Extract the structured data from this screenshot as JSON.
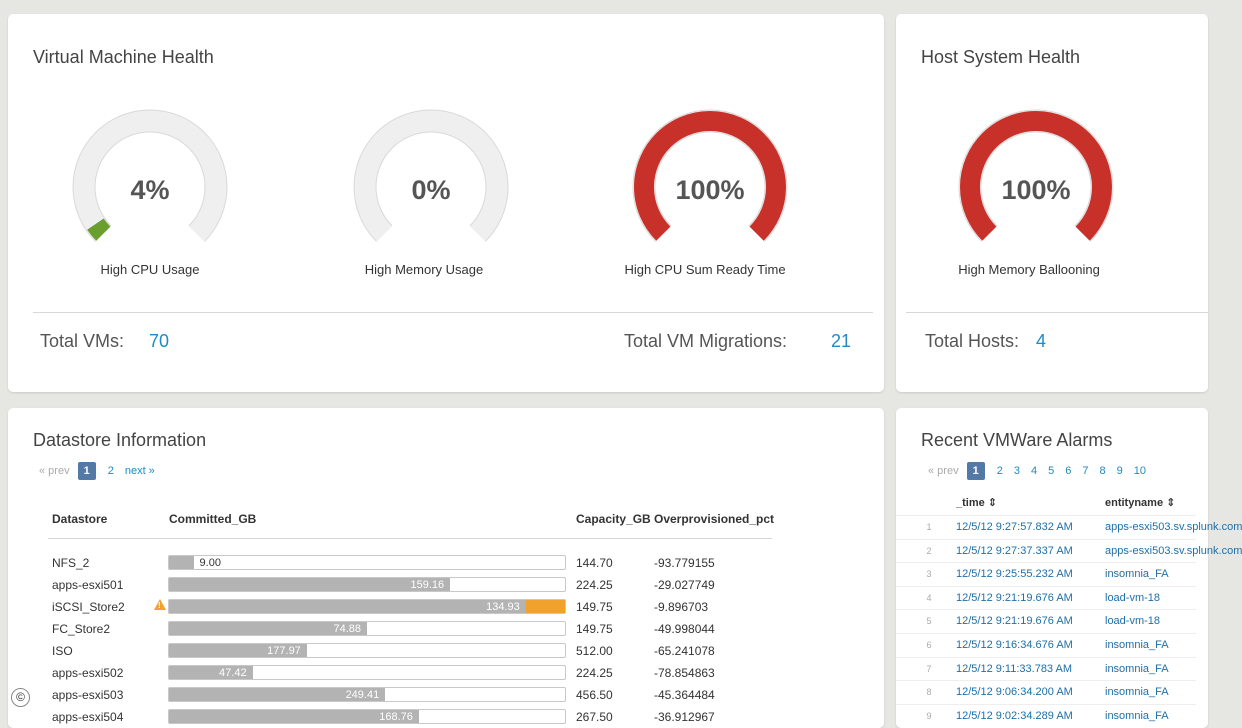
{
  "vm_health": {
    "title": "Virtual Machine Health",
    "gauges": [
      {
        "value": "4%",
        "label": "High CPU Usage",
        "pct": 4,
        "color": "#6a9e2e"
      },
      {
        "value": "0%",
        "label": "High Memory Usage",
        "pct": 0,
        "color": "#6a9e2e"
      },
      {
        "value": "100%",
        "label": "High CPU Sum Ready Time",
        "pct": 100,
        "color": "#c8312a"
      }
    ],
    "total_vms_label": "Total VMs:",
    "total_vms": "70",
    "total_migrations_label": "Total VM Migrations:",
    "total_migrations": "21"
  },
  "host_health": {
    "title": "Host System Health",
    "gauge": {
      "value": "100%",
      "label": "High Memory Ballooning",
      "pct": 100,
      "color": "#c8312a"
    },
    "total_hosts_label": "Total Hosts:",
    "total_hosts": "4"
  },
  "datastore": {
    "title": "Datastore Information",
    "pager": {
      "prev": "« prev",
      "pages": [
        "1",
        "2"
      ],
      "active": "1",
      "next": "next »"
    },
    "headers": {
      "name": "Datastore",
      "committed": "Committed_GB",
      "capacity": "Capacity_GB",
      "overprov": "Overprovisioned_pct"
    },
    "rows": [
      {
        "name": "NFS_2",
        "committed": "9.00",
        "capacity": "144.70",
        "overprov": "-93.779155",
        "pct": 6.2,
        "warn": false
      },
      {
        "name": "apps-esxi501",
        "committed": "159.16",
        "capacity": "224.25",
        "overprov": "-29.027749",
        "pct": 71,
        "warn": false
      },
      {
        "name": "iSCSI_Store2",
        "committed": "134.93",
        "capacity": "149.75",
        "overprov": "-9.896703",
        "pct": 90.1,
        "warn": true,
        "warn_symbol": "!"
      },
      {
        "name": "FC_Store2",
        "committed": "74.88",
        "capacity": "149.75",
        "overprov": "-49.998044",
        "pct": 50,
        "warn": false
      },
      {
        "name": "ISO",
        "committed": "177.97",
        "capacity": "512.00",
        "overprov": "-65.241078",
        "pct": 34.8,
        "warn": false
      },
      {
        "name": "apps-esxi502",
        "committed": "47.42",
        "capacity": "224.25",
        "overprov": "-78.854863",
        "pct": 21.1,
        "warn": false
      },
      {
        "name": "apps-esxi503",
        "committed": "249.41",
        "capacity": "456.50",
        "overprov": "-45.364484",
        "pct": 54.6,
        "warn": false
      },
      {
        "name": "apps-esxi504",
        "committed": "168.76",
        "capacity": "267.50",
        "overprov": "-36.912967",
        "pct": 63.1,
        "warn": false
      }
    ]
  },
  "alarms": {
    "title": "Recent VMWare Alarms",
    "pager": {
      "prev": "« prev",
      "pages": [
        "1",
        "2",
        "3",
        "4",
        "5",
        "6",
        "7",
        "8",
        "9",
        "10"
      ],
      "active": "1"
    },
    "headers": {
      "time": "_time ⇕",
      "entity": "entityname ⇕"
    },
    "rows": [
      {
        "num": "1",
        "time": "12/5/12 9:27:57.832 AM",
        "entity": "apps-esxi503.sv.splunk.com"
      },
      {
        "num": "2",
        "time": "12/5/12 9:27:37.337 AM",
        "entity": "apps-esxi503.sv.splunk.com"
      },
      {
        "num": "3",
        "time": "12/5/12 9:25:55.232 AM",
        "entity": "insomnia_FA"
      },
      {
        "num": "4",
        "time": "12/5/12 9:21:19.676 AM",
        "entity": "load-vm-18"
      },
      {
        "num": "5",
        "time": "12/5/12 9:21:19.676 AM",
        "entity": "load-vm-18"
      },
      {
        "num": "6",
        "time": "12/5/12 9:16:34.676 AM",
        "entity": "insomnia_FA"
      },
      {
        "num": "7",
        "time": "12/5/12 9:11:33.783 AM",
        "entity": "insomnia_FA"
      },
      {
        "num": "8",
        "time": "12/5/12 9:06:34.200 AM",
        "entity": "insomnia_FA"
      },
      {
        "num": "9",
        "time": "12/5/12 9:02:34.289 AM",
        "entity": "insomnia_FA"
      }
    ]
  },
  "footer": {
    "copyright": "©"
  }
}
